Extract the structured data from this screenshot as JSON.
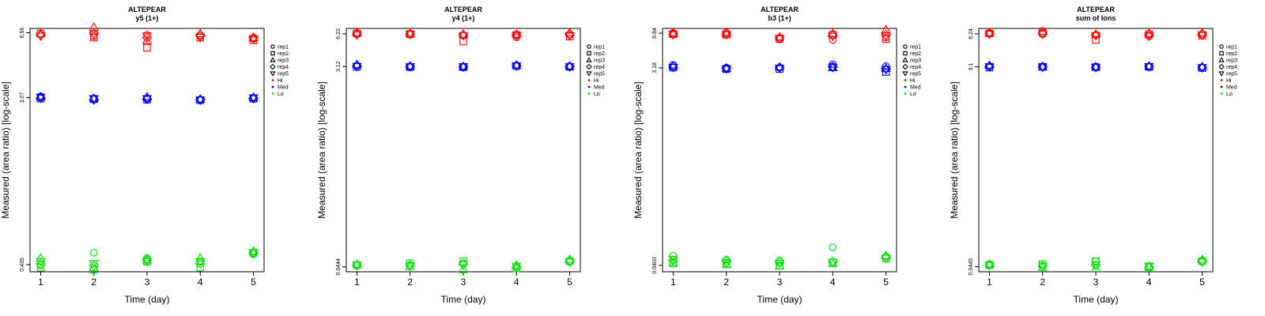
{
  "chart_data": [
    {
      "type": "scatter",
      "title": "ALTEPEAR",
      "subtitle": "y5 (1+)",
      "xlabel": "Time (day)",
      "ylabel": "Measured (area ratio) [log-scale]",
      "x": [
        1,
        2,
        3,
        4,
        5
      ],
      "yticks": [
        0.435,
        3.07,
        6.56
      ],
      "ytick_labels": [
        "0.435",
        "3.07",
        "6.56"
      ],
      "ylim": [
        0.4,
        6.9
      ],
      "legend": [
        "rep1",
        "rep2",
        "rep3",
        "rep4",
        "rep5",
        "Hi",
        "Med",
        "Lo"
      ],
      "legend_position": "right",
      "series": [
        {
          "name": "rep1",
          "marker": "circle",
          "Hi": [
            6.4,
            6.3,
            6.4,
            6.3,
            6.1
          ],
          "Med": [
            3.12,
            3.05,
            3.04,
            3.0,
            3.07
          ],
          "Lo": [
            0.43,
            0.5,
            0.47,
            0.45,
            0.49
          ]
        },
        {
          "name": "rep2",
          "marker": "square",
          "Hi": [
            6.5,
            6.2,
            5.5,
            6.2,
            6.0
          ],
          "Med": [
            3.04,
            3.02,
            3.0,
            2.98,
            3.03
          ],
          "Lo": [
            0.42,
            0.41,
            0.45,
            0.42,
            0.5
          ]
        },
        {
          "name": "rep3",
          "marker": "triangle",
          "Hi": [
            6.5,
            7.0,
            6.0,
            6.5,
            6.2
          ],
          "Med": [
            3.1,
            3.04,
            3.1,
            3.02,
            3.08
          ],
          "Lo": [
            0.47,
            0.42,
            0.46,
            0.47,
            0.51
          ]
        },
        {
          "name": "rep4",
          "marker": "diamond",
          "Hi": [
            6.4,
            6.5,
            6.2,
            6.4,
            6.2
          ],
          "Med": [
            3.06,
            3.0,
            3.02,
            3.0,
            3.05
          ],
          "Lo": [
            0.44,
            0.43,
            0.46,
            0.44,
            0.5
          ]
        },
        {
          "name": "rep5",
          "marker": "nabla",
          "Hi": [
            6.3,
            6.4,
            6.3,
            6.2,
            6.1
          ],
          "Med": [
            3.08,
            3.03,
            3.03,
            2.98,
            3.06
          ],
          "Lo": [
            0.45,
            0.44,
            0.45,
            0.45,
            0.5
          ]
        }
      ]
    },
    {
      "type": "scatter",
      "title": "ALTEPEAR",
      "subtitle": "y4 (1+)",
      "xlabel": "Time (day)",
      "ylabel": "Measured (area ratio) [log-scale]",
      "x": [
        1,
        2,
        3,
        4,
        5
      ],
      "yticks": [
        0.0444,
        3.12,
        6.23
      ],
      "ytick_labels": [
        "0.0444",
        "3.12",
        "6.23"
      ],
      "ylim": [
        0.04,
        7.0
      ],
      "legend": [
        "rep1",
        "rep2",
        "rep3",
        "rep4",
        "rep5",
        "Hi",
        "Med",
        "Lo"
      ],
      "legend_position": "right",
      "series": [
        {
          "name": "rep1",
          "marker": "circle",
          "Hi": [
            6.2,
            6.3,
            6.0,
            5.8,
            6.1
          ],
          "Med": [
            3.2,
            3.12,
            3.12,
            3.2,
            3.13
          ],
          "Lo": [
            0.046,
            0.046,
            0.048,
            0.044,
            0.05
          ]
        },
        {
          "name": "rep2",
          "marker": "square",
          "Hi": [
            6.3,
            6.2,
            5.3,
            6.1,
            5.9
          ],
          "Med": [
            3.1,
            3.08,
            3.08,
            3.15,
            3.1
          ],
          "Lo": [
            0.046,
            0.048,
            0.05,
            0.043,
            0.05
          ]
        },
        {
          "name": "rep3",
          "marker": "triangle",
          "Hi": [
            6.4,
            6.3,
            6.2,
            6.2,
            6.4
          ],
          "Med": [
            3.25,
            3.15,
            3.12,
            3.22,
            3.15
          ],
          "Lo": [
            0.047,
            0.045,
            0.042,
            0.046,
            0.052
          ]
        },
        {
          "name": "rep4",
          "marker": "diamond",
          "Hi": [
            6.2,
            6.2,
            6.1,
            6.1,
            6.2
          ],
          "Med": [
            3.15,
            3.12,
            3.1,
            3.18,
            3.12
          ],
          "Lo": [
            0.046,
            0.046,
            0.047,
            0.044,
            0.05
          ]
        },
        {
          "name": "rep5",
          "marker": "nabla",
          "Hi": [
            6.1,
            6.2,
            6.0,
            6.0,
            6.0
          ],
          "Med": [
            3.12,
            3.1,
            3.1,
            3.15,
            3.1
          ],
          "Lo": [
            0.046,
            0.045,
            0.046,
            0.045,
            0.049
          ]
        }
      ]
    },
    {
      "type": "scatter",
      "title": "ALTEPEAR",
      "subtitle": "b3 (1+)",
      "xlabel": "Time (day)",
      "ylabel": "Measured (area ratio) [log-scale]",
      "x": [
        1,
        2,
        3,
        4,
        5
      ],
      "yticks": [
        0.0403,
        3.18,
        6.84
      ],
      "ytick_labels": [
        "0.0403",
        "3.18",
        "6.84"
      ],
      "ylim": [
        0.035,
        7.6
      ],
      "legend": [
        "rep1",
        "rep2",
        "rep3",
        "rep4",
        "rep5",
        "Hi",
        "Med",
        "Lo"
      ],
      "legend_position": "right",
      "series": [
        {
          "name": "rep1",
          "marker": "circle",
          "Hi": [
            6.9,
            7.0,
            6.1,
            5.9,
            6.2
          ],
          "Med": [
            3.4,
            3.2,
            3.2,
            3.45,
            3.3
          ],
          "Lo": [
            0.05,
            0.046,
            0.045,
            0.06,
            0.049
          ]
        },
        {
          "name": "rep2",
          "marker": "square",
          "Hi": [
            6.7,
            6.6,
            6.0,
            6.6,
            6.0
          ],
          "Med": [
            3.2,
            3.1,
            3.1,
            3.25,
            2.9
          ],
          "Lo": [
            0.042,
            0.042,
            0.04,
            0.043,
            0.047
          ]
        },
        {
          "name": "rep3",
          "marker": "triangle",
          "Hi": [
            6.8,
            6.8,
            6.3,
            6.8,
            7.4
          ],
          "Med": [
            3.3,
            3.15,
            3.25,
            3.2,
            3.15
          ],
          "Lo": [
            0.043,
            0.041,
            0.04,
            0.042,
            0.05
          ]
        },
        {
          "name": "rep4",
          "marker": "diamond",
          "Hi": [
            6.7,
            6.7,
            6.2,
            6.5,
            6.6
          ],
          "Med": [
            3.25,
            3.15,
            3.2,
            3.25,
            3.1
          ],
          "Lo": [
            0.045,
            0.044,
            0.043,
            0.044,
            0.048
          ]
        },
        {
          "name": "rep5",
          "marker": "nabla",
          "Hi": [
            6.6,
            6.6,
            6.1,
            6.4,
            6.4
          ],
          "Med": [
            3.2,
            3.1,
            3.15,
            3.2,
            3.05
          ],
          "Lo": [
            0.046,
            0.043,
            0.042,
            0.043,
            0.047
          ]
        }
      ]
    },
    {
      "type": "scatter",
      "title": "ALTEPEAR",
      "subtitle": "sum of Ions",
      "xlabel": "Time (day)",
      "ylabel": "Measured (area ratio) [log-scale]",
      "x": [
        1,
        2,
        3,
        4,
        5
      ],
      "yticks": [
        0.0445,
        3.1,
        6.24
      ],
      "ytick_labels": [
        "0.0445",
        "3.1",
        "6.24"
      ],
      "ylim": [
        0.04,
        7.0
      ],
      "legend": [
        "rep1",
        "rep2",
        "rep3",
        "rep4",
        "rep5",
        "Hi",
        "Med",
        "Lo"
      ],
      "legend_position": "right",
      "series": [
        {
          "name": "rep1",
          "marker": "circle",
          "Hi": [
            6.3,
            6.2,
            6.1,
            5.9,
            6.1
          ],
          "Med": [
            3.15,
            3.12,
            3.1,
            3.12,
            3.05
          ],
          "Lo": [
            0.047,
            0.045,
            0.05,
            0.044,
            0.05
          ]
        },
        {
          "name": "rep2",
          "marker": "square",
          "Hi": [
            6.3,
            6.4,
            5.5,
            6.2,
            6.0
          ],
          "Med": [
            3.05,
            3.1,
            3.08,
            3.1,
            3.02
          ],
          "Lo": [
            0.046,
            0.047,
            0.05,
            0.044,
            0.05
          ]
        },
        {
          "name": "rep3",
          "marker": "triangle",
          "Hi": [
            6.4,
            6.6,
            6.2,
            6.3,
            6.4
          ],
          "Med": [
            3.2,
            3.1,
            3.1,
            3.15,
            3.1
          ],
          "Lo": [
            0.047,
            0.044,
            0.043,
            0.045,
            0.052
          ]
        },
        {
          "name": "rep4",
          "marker": "diamond",
          "Hi": [
            6.3,
            6.3,
            6.1,
            6.1,
            6.2
          ],
          "Med": [
            3.12,
            3.1,
            3.08,
            3.12,
            3.06
          ],
          "Lo": [
            0.046,
            0.045,
            0.046,
            0.044,
            0.05
          ]
        },
        {
          "name": "rep5",
          "marker": "nabla",
          "Hi": [
            6.2,
            6.2,
            6.0,
            6.0,
            6.1
          ],
          "Med": [
            3.1,
            3.08,
            3.06,
            3.1,
            3.04
          ],
          "Lo": [
            0.046,
            0.045,
            0.046,
            0.045,
            0.049
          ]
        }
      ]
    }
  ],
  "colors": {
    "Hi": "#ff0000",
    "Med": "#0000ff",
    "Lo": "#00dd00",
    "axis": "#000000"
  }
}
